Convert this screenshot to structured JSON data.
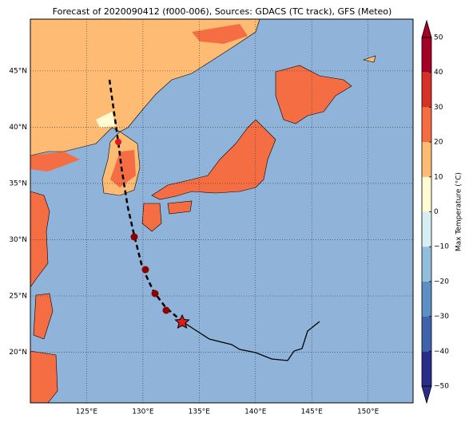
{
  "map": {
    "title": "Forecast of 2020090412 (f000-006), Sources: GDACS (TC track), GFS (Meteo)",
    "xlim": [
      120,
      154
    ],
    "ylim": [
      15.5,
      49.6
    ],
    "xticks": [
      {
        "value": 125,
        "label": "125°E"
      },
      {
        "value": 130,
        "label": "130°E"
      },
      {
        "value": 135,
        "label": "135°E"
      },
      {
        "value": 140,
        "label": "140°E"
      },
      {
        "value": 145,
        "label": "145°E"
      },
      {
        "value": 150,
        "label": "150°E"
      }
    ],
    "yticks": [
      {
        "value": 20,
        "label": "20°N"
      },
      {
        "value": 25,
        "label": "25°N"
      },
      {
        "value": 30,
        "label": "30°N"
      },
      {
        "value": 35,
        "label": "35°N"
      },
      {
        "value": 40,
        "label": "40°N"
      },
      {
        "value": 45,
        "label": "45°N"
      }
    ],
    "colorbar": {
      "label": "Max Temperature (°C)",
      "lim": [
        -50,
        50
      ],
      "ticks": [
        {
          "value": -50,
          "label": "−50"
        },
        {
          "value": -40,
          "label": "−40"
        },
        {
          "value": -30,
          "label": "−30"
        },
        {
          "value": -20,
          "label": "−20"
        },
        {
          "value": -10,
          "label": "−10"
        },
        0,
        10,
        20,
        30,
        40,
        50
      ],
      "colors": [
        "#2a2c8c",
        "#3f63aa",
        "#5c90c2",
        "#92bddb",
        "#d8eef5",
        "#fffbd2",
        "#fdbb74",
        "#f46d43",
        "#d73027",
        "#a50026"
      ]
    }
  }
}
